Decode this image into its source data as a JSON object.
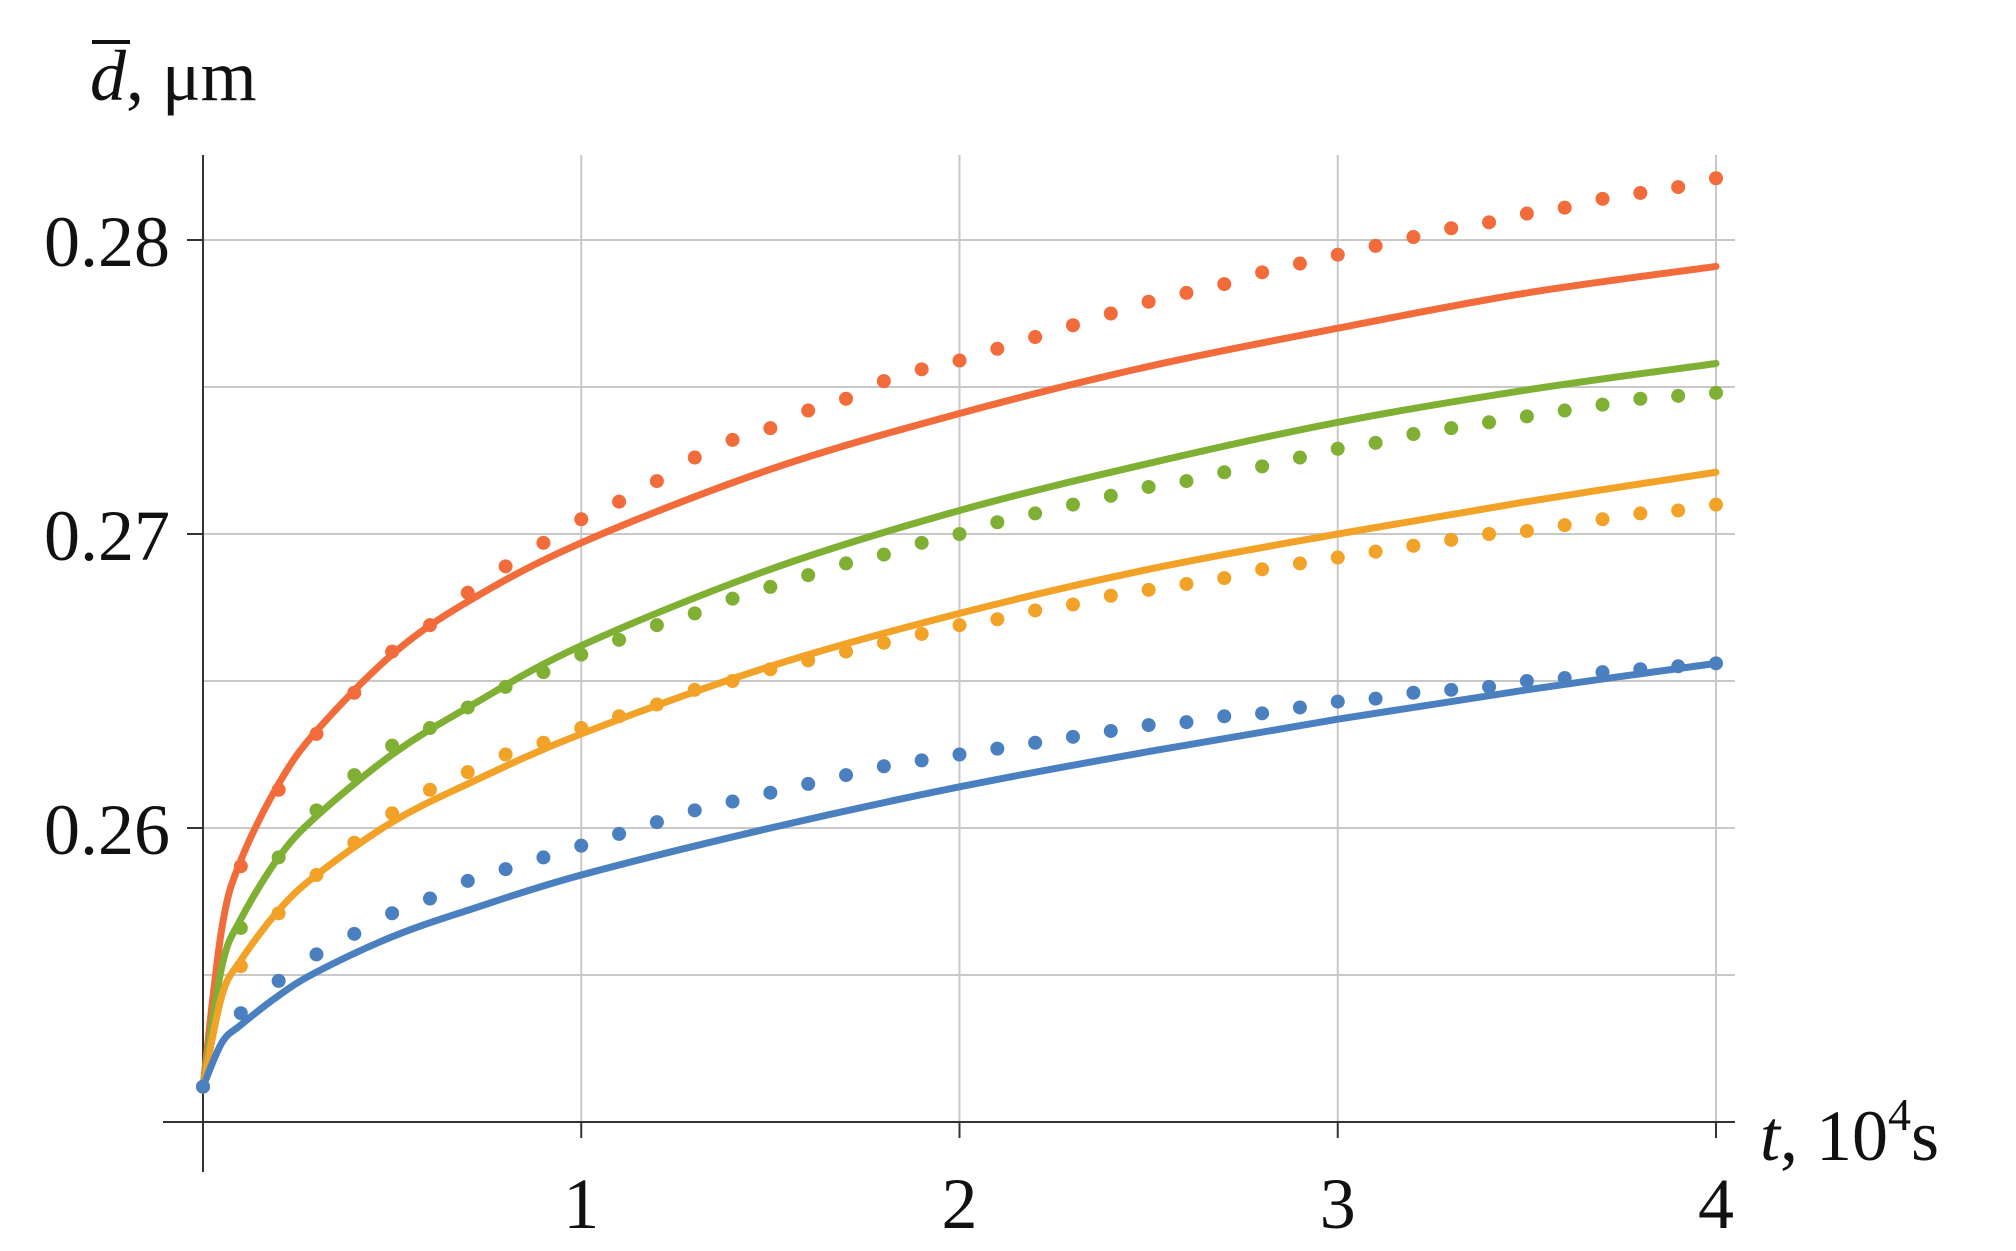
{
  "chart_data": {
    "type": "line",
    "title": "",
    "xlabel": {
      "symbol": "t",
      "unit_prefix": ", 10",
      "unit_exp": "4",
      "unit_suffix": "s"
    },
    "ylabel": {
      "symbol": "d",
      "unit": ", μm"
    },
    "xlim": [
      0,
      4.05
    ],
    "ylim": [
      0.2507,
      0.2828
    ],
    "xticks": [
      1,
      2,
      3,
      4
    ],
    "xtick_labels": [
      "1",
      "2",
      "3",
      "4"
    ],
    "yticks": [
      0.26,
      0.27,
      0.28
    ],
    "ytick_labels": [
      "0.26",
      "0.27",
      "0.28"
    ],
    "y_gridlines": [
      0.255,
      0.26,
      0.265,
      0.27,
      0.275,
      0.28
    ],
    "x_gridlines": [
      1,
      2,
      3,
      4
    ],
    "grid": true,
    "legend": "none",
    "colors": {
      "red": "#f26b3a",
      "green": "#7fb034",
      "orange": "#f2a227",
      "blue": "#4a80bf",
      "axis": "#333333",
      "grid": "#c8c8c8"
    },
    "series": [
      {
        "style": "solid",
        "color": "red",
        "x": [
          0,
          0.05,
          0.1,
          0.2,
          0.3,
          0.5,
          0.7,
          1.0,
          1.5,
          2.0,
          2.5,
          3.0,
          3.5,
          4.0
        ],
        "y": [
          0.2512,
          0.2566,
          0.2589,
          0.2615,
          0.2633,
          0.2659,
          0.2677,
          0.2697,
          0.2722,
          0.2741,
          0.2757,
          0.277,
          0.2782,
          0.2791
        ]
      },
      {
        "style": "solid",
        "color": "green",
        "x": [
          0,
          0.05,
          0.1,
          0.2,
          0.3,
          0.5,
          0.7,
          1.0,
          1.5,
          2.0,
          2.5,
          3.0,
          3.5,
          4.0
        ],
        "y": [
          0.2512,
          0.2553,
          0.2569,
          0.259,
          0.2604,
          0.2625,
          0.2641,
          0.2662,
          0.2688,
          0.2708,
          0.2724,
          0.2738,
          0.2749,
          0.2758
        ]
      },
      {
        "style": "solid",
        "color": "orange",
        "x": [
          0,
          0.05,
          0.1,
          0.2,
          0.3,
          0.5,
          0.7,
          1.0,
          1.5,
          2.0,
          2.5,
          3.0,
          3.5,
          4.0
        ],
        "y": [
          0.2512,
          0.2543,
          0.2555,
          0.2572,
          0.2584,
          0.2602,
          0.2615,
          0.2632,
          0.2655,
          0.2673,
          0.2688,
          0.27,
          0.2711,
          0.2721
        ]
      },
      {
        "style": "solid",
        "color": "blue",
        "x": [
          0,
          0.05,
          0.1,
          0.2,
          0.3,
          0.5,
          0.7,
          1.0,
          1.5,
          2.0,
          2.5,
          3.0,
          3.5,
          4.0
        ],
        "y": [
          0.2512,
          0.2527,
          0.2533,
          0.2543,
          0.2551,
          0.2563,
          0.2572,
          0.2584,
          0.26,
          0.2614,
          0.2626,
          0.2637,
          0.2647,
          0.2656
        ]
      },
      {
        "style": "dotted",
        "color": "red",
        "x": [
          0,
          0.1,
          0.2,
          0.3,
          0.4,
          0.5,
          0.6,
          0.7,
          0.8,
          0.9,
          1.0,
          1.1,
          1.2,
          1.3,
          1.4,
          1.5,
          1.6,
          1.7,
          1.8,
          1.9,
          2.0,
          2.1,
          2.2,
          2.3,
          2.4,
          2.5,
          2.6,
          2.7,
          2.8,
          2.9,
          3.0,
          3.1,
          3.2,
          3.3,
          3.4,
          3.5,
          3.6,
          3.7,
          3.8,
          3.9,
          4.0
        ],
        "y": [
          0.2512,
          0.2587,
          0.2613,
          0.2632,
          0.2646,
          0.266,
          0.2669,
          0.268,
          0.2689,
          0.2697,
          0.2705,
          0.2711,
          0.2718,
          0.2726,
          0.2732,
          0.2736,
          0.2742,
          0.2746,
          0.2752,
          0.2756,
          0.2759,
          0.2763,
          0.2767,
          0.2771,
          0.2775,
          0.2779,
          0.2782,
          0.2785,
          0.2789,
          0.2792,
          0.2795,
          0.2798,
          0.2801,
          0.2804,
          0.2806,
          0.2809,
          0.2811,
          0.2814,
          0.2816,
          0.2818,
          0.2821
        ]
      },
      {
        "style": "dotted",
        "color": "green",
        "x": [
          0,
          0.1,
          0.2,
          0.3,
          0.4,
          0.5,
          0.6,
          0.7,
          0.8,
          0.9,
          1.0,
          1.1,
          1.2,
          1.3,
          1.4,
          1.5,
          1.6,
          1.7,
          1.8,
          1.9,
          2.0,
          2.1,
          2.2,
          2.3,
          2.4,
          2.5,
          2.6,
          2.7,
          2.8,
          2.9,
          3.0,
          3.1,
          3.2,
          3.3,
          3.4,
          3.5,
          3.6,
          3.7,
          3.8,
          3.9,
          4.0
        ],
        "y": [
          0.2512,
          0.2566,
          0.259,
          0.2606,
          0.2618,
          0.2628,
          0.2634,
          0.2641,
          0.2648,
          0.2653,
          0.2659,
          0.2664,
          0.2669,
          0.2673,
          0.2678,
          0.2682,
          0.2686,
          0.269,
          0.2693,
          0.2697,
          0.27,
          0.2704,
          0.2707,
          0.271,
          0.2713,
          0.2716,
          0.2718,
          0.2721,
          0.2723,
          0.2726,
          0.2729,
          0.2731,
          0.2734,
          0.2736,
          0.2738,
          0.274,
          0.2742,
          0.2744,
          0.2746,
          0.2747,
          0.2748
        ]
      },
      {
        "style": "dotted",
        "color": "orange",
        "x": [
          0,
          0.1,
          0.2,
          0.3,
          0.4,
          0.5,
          0.6,
          0.7,
          0.8,
          0.9,
          1.0,
          1.1,
          1.2,
          1.3,
          1.4,
          1.5,
          1.6,
          1.7,
          1.8,
          1.9,
          2.0,
          2.1,
          2.2,
          2.3,
          2.4,
          2.5,
          2.6,
          2.7,
          2.8,
          2.9,
          3.0,
          3.1,
          3.2,
          3.3,
          3.4,
          3.5,
          3.6,
          3.7,
          3.8,
          3.9,
          4.0
        ],
        "y": [
          0.2512,
          0.2553,
          0.2571,
          0.2584,
          0.2595,
          0.2605,
          0.2613,
          0.2619,
          0.2625,
          0.2629,
          0.2634,
          0.2638,
          0.2642,
          0.2647,
          0.265,
          0.2654,
          0.2657,
          0.266,
          0.2663,
          0.2666,
          0.2669,
          0.2671,
          0.2674,
          0.2676,
          0.2679,
          0.2681,
          0.2683,
          0.2685,
          0.2688,
          0.269,
          0.2692,
          0.2694,
          0.2696,
          0.2698,
          0.27,
          0.2701,
          0.2703,
          0.2705,
          0.2707,
          0.2708,
          0.271
        ]
      },
      {
        "style": "dotted",
        "color": "blue",
        "x": [
          0,
          0.1,
          0.2,
          0.3,
          0.4,
          0.5,
          0.6,
          0.7,
          0.8,
          0.9,
          1.0,
          1.1,
          1.2,
          1.3,
          1.4,
          1.5,
          1.6,
          1.7,
          1.8,
          1.9,
          2.0,
          2.1,
          2.2,
          2.3,
          2.4,
          2.5,
          2.6,
          2.7,
          2.8,
          2.9,
          3.0,
          3.1,
          3.2,
          3.3,
          3.4,
          3.5,
          3.6,
          3.7,
          3.8,
          3.9,
          4.0
        ],
        "y": [
          0.2512,
          0.2537,
          0.2548,
          0.2557,
          0.2564,
          0.2571,
          0.2576,
          0.2582,
          0.2586,
          0.259,
          0.2594,
          0.2598,
          0.2602,
          0.2606,
          0.2609,
          0.2612,
          0.2615,
          0.2618,
          0.2621,
          0.2623,
          0.2625,
          0.2627,
          0.2629,
          0.2631,
          0.2633,
          0.2635,
          0.2636,
          0.2638,
          0.2639,
          0.2641,
          0.2643,
          0.2644,
          0.2646,
          0.2647,
          0.2648,
          0.265,
          0.2651,
          0.2653,
          0.2654,
          0.2655,
          0.2656
        ]
      }
    ]
  }
}
